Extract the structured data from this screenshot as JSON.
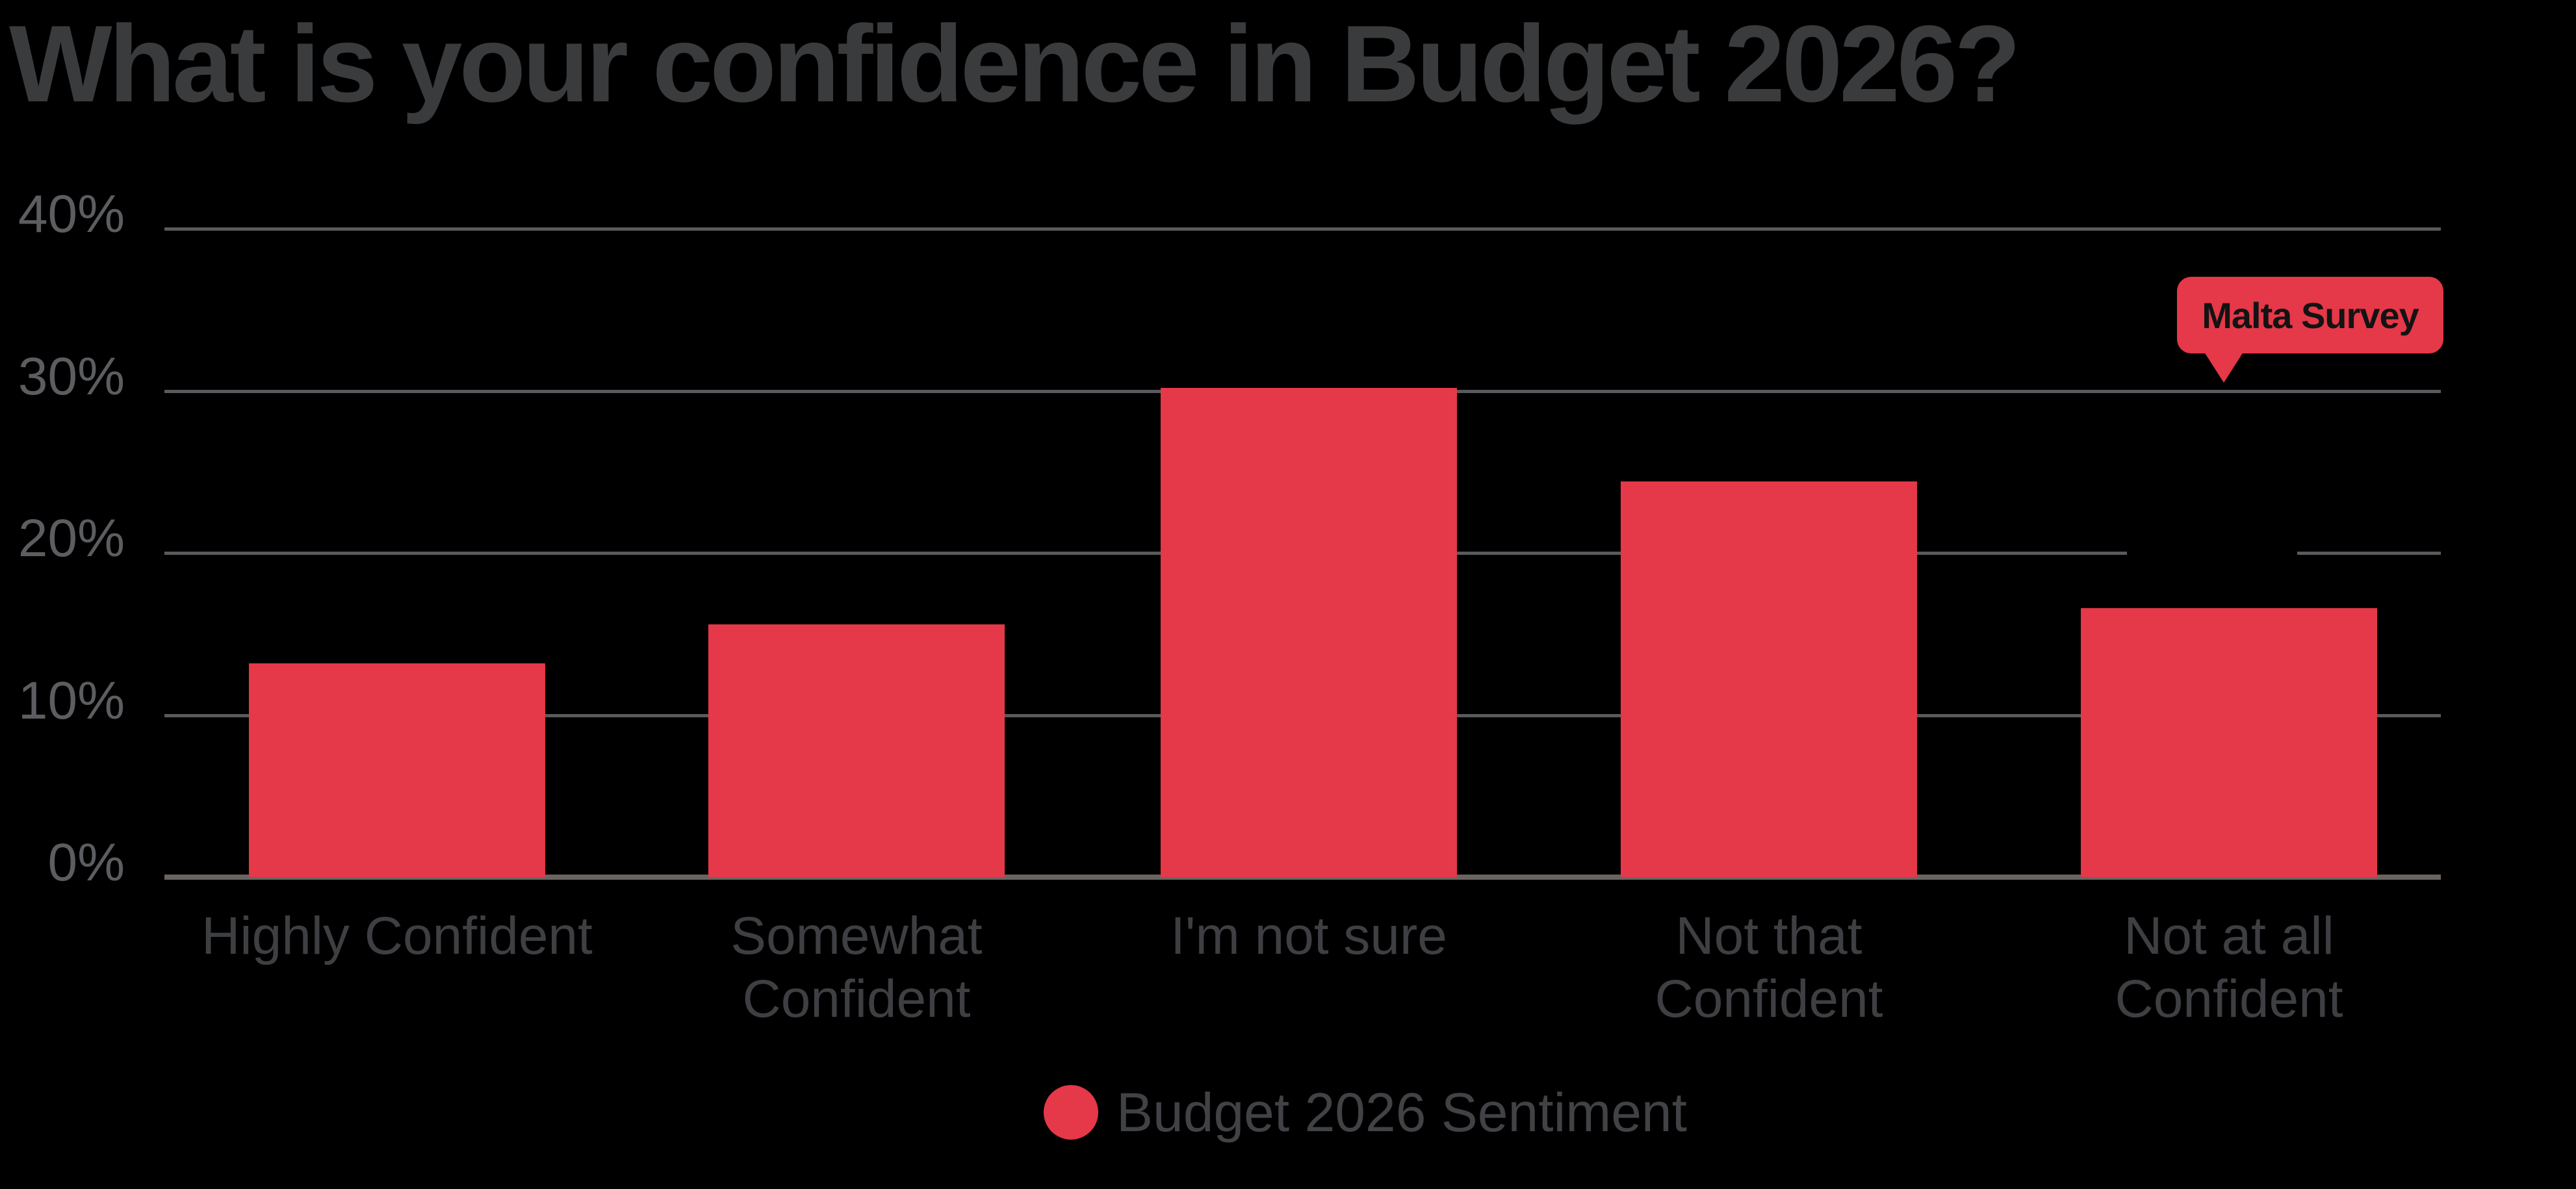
{
  "page": {
    "background": "#000000"
  },
  "chart_data": {
    "type": "bar",
    "title": "What is your confidence in Budget 2026?",
    "categories": [
      "Highly Confident",
      "Somewhat Confident",
      "I'm not sure",
      "Not that Confident",
      "Not at all Confident"
    ],
    "category_lines": [
      [
        "Highly Confident"
      ],
      [
        "Somewhat",
        "Confident"
      ],
      [
        "I'm not sure"
      ],
      [
        "Not that",
        "Confident"
      ],
      [
        "Not at all",
        "Confident"
      ]
    ],
    "series": [
      {
        "name": "Budget 2026 Sentiment",
        "color": "#e53848",
        "values": [
          13.2,
          15.6,
          30.2,
          24.4,
          16.6
        ]
      }
    ],
    "value_suffix": "%",
    "xlabel": "",
    "ylabel": "",
    "ylim": [
      0,
      40
    ],
    "yticks": [
      0,
      10,
      20,
      30,
      40
    ],
    "ytick_labels": [
      "0%",
      "10%",
      "20%",
      "30%",
      "40%"
    ],
    "grid": true,
    "legend_position": "bottom-center",
    "annotation": {
      "label": "Malta Survey",
      "badge_color": "#e53848",
      "text_color": "#131313",
      "points_to_y": 30
    }
  },
  "colors": {
    "background": "#000000",
    "bar": "#e53848",
    "title_text": "#3a3b3d",
    "y_axis_label_text": "#5c5d60",
    "category_label_text": "#3e3f42",
    "legend_text": "#414245",
    "gridline": "#595a5d",
    "axis_baseline": "#6a6461"
  }
}
